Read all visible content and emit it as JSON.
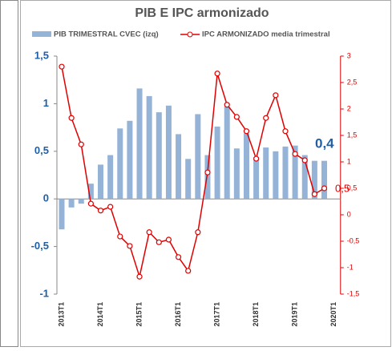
{
  "chart_data": {
    "type": "bar-line",
    "title": "PIB E IPC armonizado",
    "categories": [
      "2013T1",
      null,
      null,
      null,
      "2014T1",
      null,
      null,
      null,
      "2015T1",
      null,
      null,
      null,
      "2016T1",
      null,
      null,
      null,
      "2017T1",
      null,
      null,
      null,
      "2018T1",
      null,
      null,
      null,
      "2019T1",
      null,
      null,
      null,
      "2020T1"
    ],
    "series": [
      {
        "name": "PIB TRIMESTRAL CVEC (izq)",
        "type": "bar",
        "color": "#95b3d7",
        "values": [
          -0.32,
          -0.09,
          -0.05,
          0.16,
          0.36,
          0.46,
          0.74,
          0.82,
          1.16,
          1.08,
          0.91,
          0.98,
          0.68,
          0.42,
          0.89,
          0.46,
          0.76,
          0.97,
          0.53,
          0.69,
          0.44,
          0.54,
          0.5,
          0.55,
          0.56,
          0.46,
          0.4,
          0.4,
          null
        ]
      },
      {
        "name": "IPC ARMONIZADO media trimestral",
        "type": "line",
        "axis": "y2",
        "color": "#e00000",
        "values": [
          2.8,
          1.83,
          1.33,
          0.21,
          0.08,
          0.15,
          -0.41,
          -0.59,
          -1.17,
          -0.33,
          -0.52,
          -0.47,
          -0.8,
          -1.06,
          -0.33,
          0.8,
          2.67,
          2.08,
          1.85,
          1.58,
          1.06,
          1.83,
          2.26,
          1.58,
          1.15,
          1.03,
          0.39,
          0.5,
          null
        ]
      }
    ],
    "ylim": [
      -1,
      1.5
    ],
    "yticks": [
      -1,
      {
        "value": -0.5,
        "label": "-0,5"
      },
      0,
      {
        "value": 0.5,
        "label": "0,5"
      },
      1,
      {
        "value": 1.5,
        "label": "1,5"
      }
    ],
    "y2lim": [
      -1.5,
      3
    ],
    "y2ticks": [
      {
        "value": -1.5,
        "label": "-1,5"
      },
      -1,
      {
        "value": -0.5,
        "label": "-0,5"
      },
      0,
      {
        "value": 0.5,
        "label": "0,5"
      },
      1,
      {
        "value": 1.5,
        "label": "1,5"
      },
      2,
      {
        "value": 2.5,
        "label": "2,5"
      },
      3
    ],
    "annotations": [
      {
        "text": "0,4",
        "value": 0.4
      },
      {
        "text": "0,5",
        "value": 0.5
      }
    ]
  }
}
